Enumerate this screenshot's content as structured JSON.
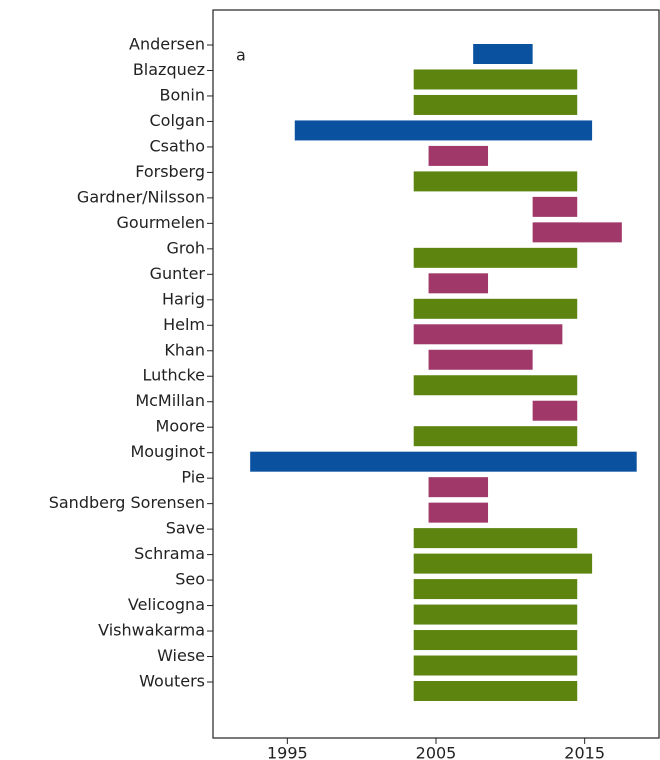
{
  "chart_data": {
    "type": "floating-bar",
    "annotation": "a",
    "categories": [
      "Andersen",
      "Blazquez",
      "Bonin",
      "Colgan",
      "Csatho",
      "Forsberg",
      "Gardner/Nilsson",
      "Gourmelen",
      "Groh",
      "Gunter",
      "Harig",
      "Helm",
      "Khan",
      "Luthcke",
      "McMillan",
      "Moore",
      "Mouginot",
      "Pie",
      "Sandberg Sorensen",
      "Save",
      "Schrama",
      "Seo",
      "Velicogna",
      "Vishwakarma",
      "Wiese",
      "Wouters"
    ],
    "start": [
      2007.5,
      2003.5,
      2003.5,
      1995.5,
      2004.5,
      2003.5,
      2011.5,
      2011.5,
      2003.5,
      2004.5,
      2003.5,
      2003.5,
      2004.5,
      2003.5,
      2011.5,
      2003.5,
      1992.5,
      2004.5,
      2004.5,
      2003.5,
      2003.5,
      2003.5,
      2003.5,
      2003.5,
      2003.5,
      2003.5
    ],
    "end": [
      2011.5,
      2014.5,
      2014.5,
      2015.5,
      2008.5,
      2014.5,
      2014.5,
      2017.5,
      2014.5,
      2008.5,
      2014.5,
      2013.5,
      2011.5,
      2014.5,
      2014.5,
      2014.5,
      2018.5,
      2008.5,
      2008.5,
      2014.5,
      2015.5,
      2014.5,
      2014.5,
      2014.5,
      2014.5,
      2014.5
    ],
    "colors": [
      "#0a52a0",
      "#5e8410",
      "#5e8410",
      "#0a52a0",
      "#a0386a",
      "#5e8410",
      "#a0386a",
      "#a0386a",
      "#5e8410",
      "#a0386a",
      "#5e8410",
      "#a0386a",
      "#a0386a",
      "#5e8410",
      "#a0386a",
      "#5e8410",
      "#0a52a0",
      "#a0386a",
      "#a0386a",
      "#5e8410",
      "#5e8410",
      "#5e8410",
      "#5e8410",
      "#5e8410",
      "#5e8410",
      "#5e8410"
    ],
    "xlim": [
      1990,
      2020
    ],
    "xticks": [
      1995,
      2005,
      2015
    ]
  }
}
